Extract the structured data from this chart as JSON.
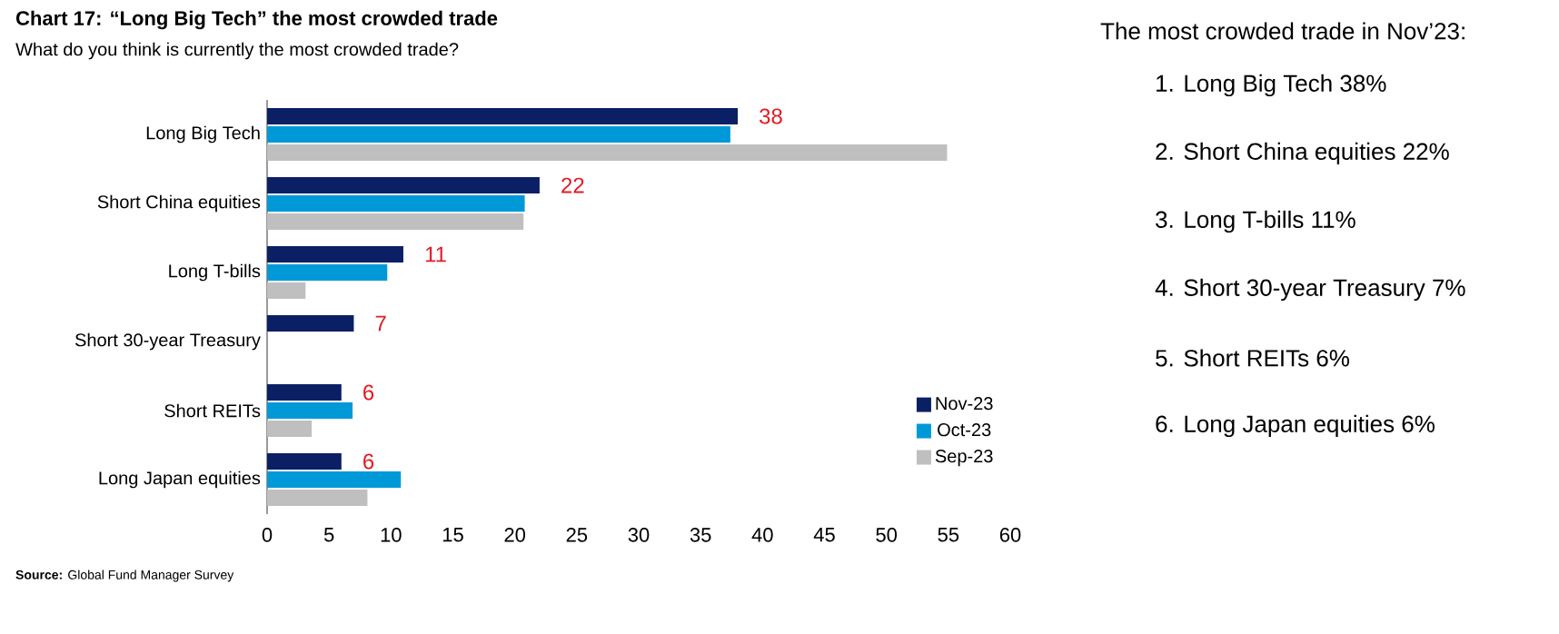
{
  "chart_data": [
    {
      "type": "bar",
      "orientation": "horizontal",
      "title": "Chart 17: “Long Big Tech” the most crowded trade",
      "subtitle": "What do you think is currently the most crowded trade?",
      "categories": [
        "Long Big Tech",
        "Short China equities",
        "Long T-bills",
        "Short 30-year Treasury",
        "Short REITs",
        "Long Japan equities"
      ],
      "series": [
        {
          "name": "Nov-23",
          "color": "#0b1f65",
          "values": [
            38,
            22,
            11,
            7,
            6,
            6
          ],
          "value_labels": [
            "38",
            "22",
            "11",
            "7",
            "6",
            "6"
          ]
        },
        {
          "name": "Oct-23",
          "color": "#0099d8",
          "values": [
            37.4,
            20.8,
            9.7,
            null,
            6.9,
            10.8
          ]
        },
        {
          "name": "Sep-23",
          "color": "#bfbfbf",
          "values": [
            54.9,
            20.7,
            3.1,
            null,
            3.6,
            8.1
          ]
        }
      ],
      "xlim": [
        0,
        60
      ],
      "xticks": [
        0,
        5,
        10,
        15,
        20,
        25,
        30,
        35,
        40,
        45,
        50,
        55,
        60
      ],
      "legend": "bottom right",
      "annotations": [
        "**Source:** Global Fund Manager Survey"
      ]
    },
    {
      "type": "other",
      "title": "The most crowded trade in Nov’23:",
      "annotations": [
        "1.  Long Big Tech 38%",
        "2.  Short China equities 22%",
        "3.  Long T-bills 11%",
        "4.  Short 30-year Treasury 7%",
        "5.  Short REITs 6%",
        "6.  Long Japan equities 6%"
      ]
    }
  ]
}
